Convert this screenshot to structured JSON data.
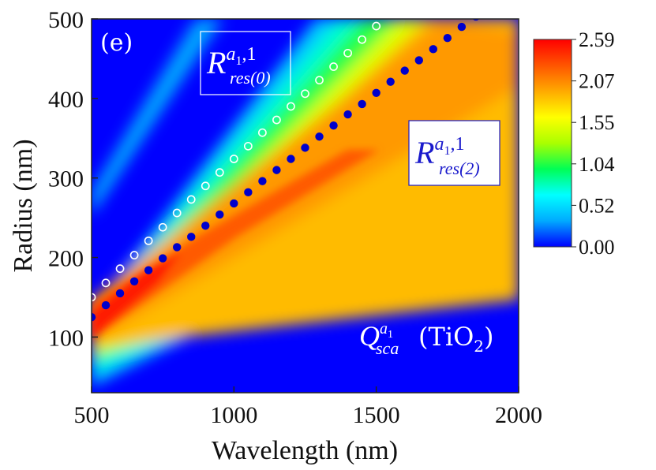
{
  "chart_data": {
    "type": "heatmap",
    "panel_label": "(e)",
    "title": "",
    "xlabel": "Wavelength (nm)",
    "ylabel": "Radius (nm)",
    "xlim": [
      500,
      2000
    ],
    "ylim": [
      30,
      500
    ],
    "x_ticks": [
      500,
      1000,
      1500,
      2000
    ],
    "y_ticks": [
      100,
      200,
      300,
      400,
      500
    ],
    "colorbar": {
      "min": 0.0,
      "max": 2.59,
      "ticks": [
        "2.59",
        "2.07",
        "1.55",
        "1.04",
        "0.52",
        "0.00"
      ],
      "colors": [
        "#0000ff",
        "#00aaff",
        "#00ffff",
        "#00ff55",
        "#aaff00",
        "#ffff00",
        "#ffaa00",
        "#ff5500",
        "#ff0000"
      ]
    },
    "annotations": {
      "res0": {
        "main": "R",
        "sup": "a",
        "sup_sub": "1",
        "sup_tail": ",1",
        "sub": "res(0)",
        "color": "#ffffff"
      },
      "res2": {
        "main": "R",
        "sup": "a",
        "sup_sub": "1",
        "sup_tail": ",1",
        "sub": "res(2)",
        "color": "#1a1acc"
      },
      "qsca": {
        "main": "Q",
        "sup": "a",
        "sup_sub": "1",
        "sub": "sca",
        "material": "(TiO",
        "material_sub": "2",
        "material_tail": ")",
        "color": "#ffffff"
      }
    },
    "series": [
      {
        "name": "R_res(0) resonance (open circles)",
        "marker": "open-circle",
        "color": "#ffffff",
        "points": [
          [
            500,
            150
          ],
          [
            550,
            168
          ],
          [
            600,
            186
          ],
          [
            650,
            203
          ],
          [
            700,
            221
          ],
          [
            750,
            238
          ],
          [
            800,
            256
          ],
          [
            850,
            273
          ],
          [
            900,
            290
          ],
          [
            950,
            307
          ],
          [
            1000,
            324
          ],
          [
            1050,
            340
          ],
          [
            1100,
            357
          ],
          [
            1150,
            373
          ],
          [
            1200,
            390
          ],
          [
            1250,
            406
          ],
          [
            1300,
            423
          ],
          [
            1350,
            440
          ],
          [
            1400,
            457
          ],
          [
            1450,
            474
          ],
          [
            1500,
            491
          ]
        ]
      },
      {
        "name": "R_res(2) resonance (filled circles)",
        "marker": "filled-circle",
        "color": "#0000cc",
        "points": [
          [
            500,
            125
          ],
          [
            550,
            140
          ],
          [
            600,
            155
          ],
          [
            650,
            170
          ],
          [
            700,
            184
          ],
          [
            750,
            199
          ],
          [
            800,
            213
          ],
          [
            850,
            226
          ],
          [
            900,
            240
          ],
          [
            950,
            254
          ],
          [
            1000,
            268
          ],
          [
            1050,
            282
          ],
          [
            1100,
            296
          ],
          [
            1150,
            310
          ],
          [
            1200,
            324
          ],
          [
            1250,
            338
          ],
          [
            1300,
            352
          ],
          [
            1350,
            366
          ],
          [
            1400,
            380
          ],
          [
            1450,
            393
          ],
          [
            1500,
            407
          ],
          [
            1550,
            421
          ],
          [
            1600,
            435
          ],
          [
            1650,
            448
          ],
          [
            1700,
            462
          ],
          [
            1750,
            476
          ],
          [
            1800,
            490
          ],
          [
            1850,
            503
          ]
        ]
      }
    ]
  }
}
